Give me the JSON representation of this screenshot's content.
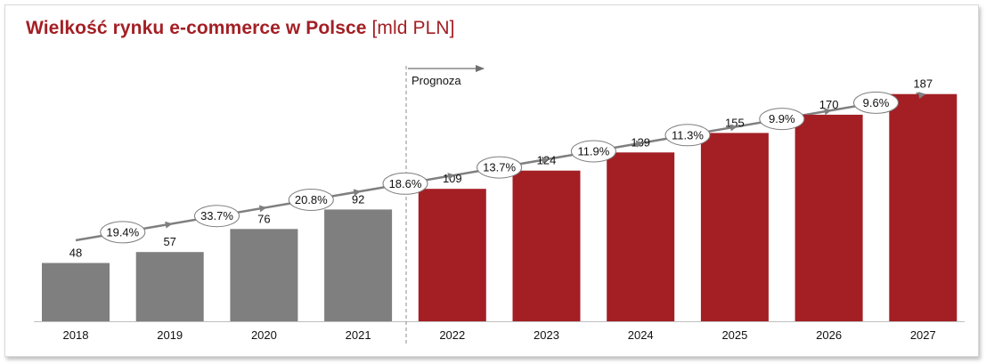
{
  "title": {
    "main": "Wielkość rynku e-commerce w Polsce",
    "unit": "[mld PLN]"
  },
  "forecast_label": "Prognoza",
  "colors": {
    "historical": "#7f7f7f",
    "forecast": "#a31f24",
    "title": "#a31f24",
    "arrow": "#7f7f7f",
    "divider": "#8c8c8c"
  },
  "chart_data": {
    "type": "bar",
    "title": "Wielkość rynku e-commerce w Polsce [mld PLN]",
    "categories": [
      "2018",
      "2019",
      "2020",
      "2021",
      "2022",
      "2023",
      "2024",
      "2025",
      "2026",
      "2027"
    ],
    "values": [
      48,
      57,
      76,
      92,
      109,
      124,
      139,
      155,
      170,
      187
    ],
    "forecast_from": "2022",
    "growth_rates": [
      "19.4%",
      "33.7%",
      "20.8%",
      "18.6%",
      "13.7%",
      "11.9%",
      "11.3%",
      "9.9%",
      "9.6%"
    ],
    "ylim": [
      0,
      200
    ],
    "grid": false,
    "legend": "none"
  }
}
